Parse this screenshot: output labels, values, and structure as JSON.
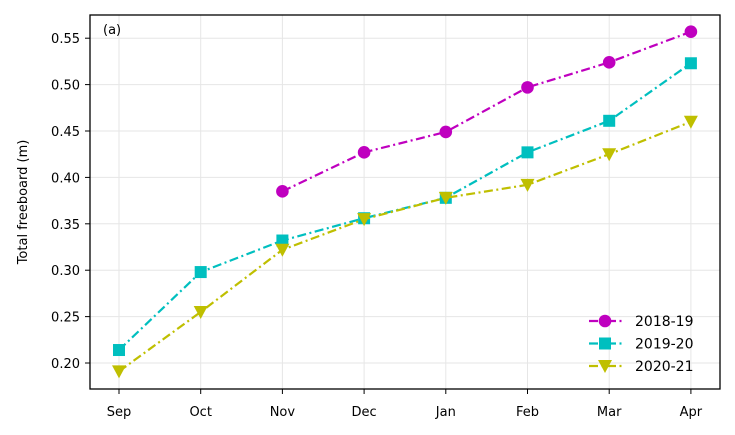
{
  "chart_data": {
    "type": "line",
    "panel_label": "(a)",
    "title": "",
    "xlabel": "",
    "ylabel": "Total freeboard (m)",
    "categories": [
      "Sep",
      "Oct",
      "Nov",
      "Dec",
      "Jan",
      "Feb",
      "Mar",
      "Apr"
    ],
    "ylim": [
      0.172,
      0.575
    ],
    "yticks": [
      0.2,
      0.25,
      0.3,
      0.35,
      0.4,
      0.45,
      0.5,
      0.55
    ],
    "ytick_labels": [
      "0.20",
      "0.25",
      "0.30",
      "0.35",
      "0.40",
      "0.45",
      "0.50",
      "0.55"
    ],
    "grid": true,
    "legend_position": "lower-right",
    "series": [
      {
        "name": "2018-19",
        "color": "#bf00bf",
        "marker": "circle",
        "values": [
          null,
          null,
          0.385,
          0.427,
          0.449,
          0.497,
          0.524,
          0.557
        ]
      },
      {
        "name": "2019-20",
        "color": "#00bfbf",
        "marker": "square",
        "values": [
          0.214,
          0.298,
          0.332,
          0.356,
          0.378,
          0.427,
          0.461,
          0.523
        ]
      },
      {
        "name": "2020-21",
        "color": "#bfbf00",
        "marker": "triangle-down",
        "values": [
          0.191,
          0.255,
          0.322,
          0.355,
          0.378,
          0.392,
          0.425,
          0.46
        ]
      }
    ]
  }
}
